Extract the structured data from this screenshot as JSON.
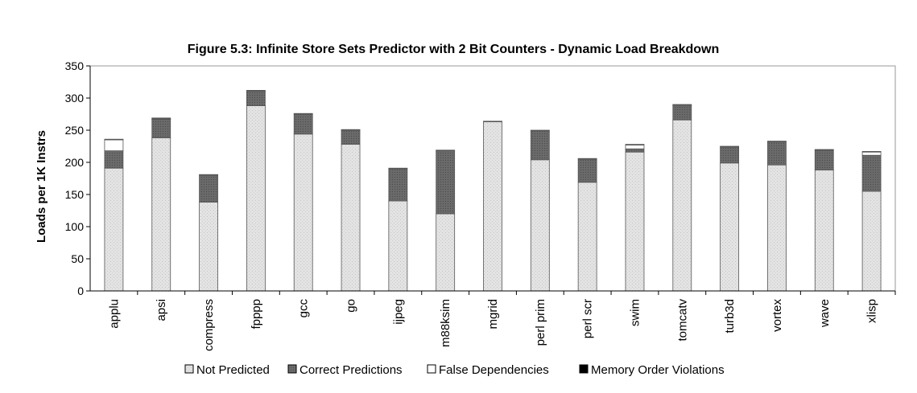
{
  "chart_data": {
    "type": "bar",
    "stacked": true,
    "title": "Figure 5.3: Infinite Store Sets Predictor with 2 Bit Counters - Dynamic Load Breakdown",
    "xlabel": "",
    "ylabel": "Loads per 1K Instrs",
    "ylim": [
      0,
      350
    ],
    "yticks": [
      0,
      50,
      100,
      150,
      200,
      250,
      300,
      350
    ],
    "grid": false,
    "legend_position": "bottom",
    "categories": [
      "applu",
      "apsi",
      "compress",
      "fpppp",
      "gcc",
      "go",
      "ijpeg",
      "m88ksim",
      "mgrid",
      "perl prim",
      "perl scr",
      "swim",
      "tomcatv",
      "turb3d",
      "vortex",
      "wave",
      "xlisp"
    ],
    "series": [
      {
        "name": "Not Predicted",
        "color": "#e3e3e3",
        "values": [
          191,
          238,
          138,
          288,
          244,
          228,
          140,
          120,
          263,
          204,
          169,
          216,
          266,
          199,
          196,
          188,
          155
        ]
      },
      {
        "name": "Correct Predictions",
        "color": "#6a6a6a",
        "values": [
          27,
          29,
          42,
          23,
          31,
          22,
          50,
          98,
          0,
          45,
          36,
          5,
          23,
          25,
          36,
          31,
          56
        ]
      },
      {
        "name": "False Dependencies",
        "color": "#ffffff",
        "values": [
          17,
          1,
          1,
          1,
          1,
          1,
          1,
          1,
          1,
          1,
          1,
          6,
          1,
          1,
          1,
          1,
          5
        ]
      },
      {
        "name": "Memory Order Violations",
        "color": "#000000",
        "values": [
          1,
          1,
          0,
          0,
          0,
          0,
          0,
          0,
          0,
          0,
          0,
          1,
          0,
          0,
          0,
          0,
          1
        ]
      }
    ]
  }
}
